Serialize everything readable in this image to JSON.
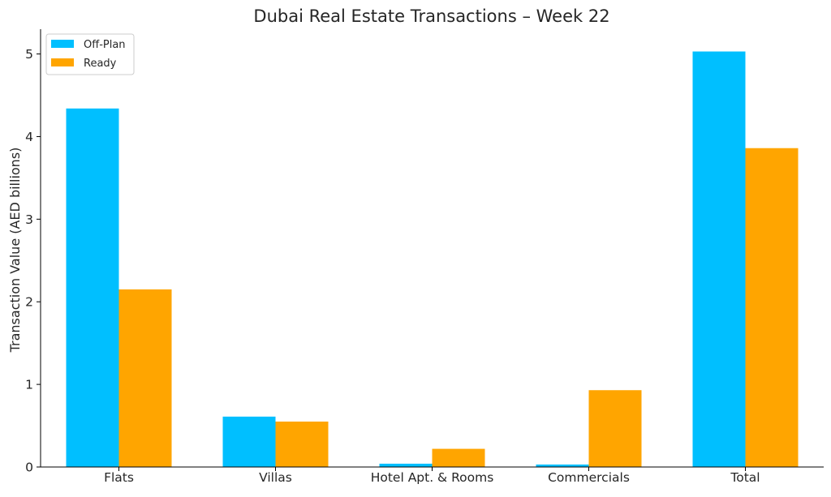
{
  "chart_data": {
    "type": "bar",
    "title": "Dubai Real Estate Transactions – Week 22",
    "xlabel": "",
    "ylabel": "Transaction Value (AED billions)",
    "categories": [
      "Flats",
      "Villas",
      "Hotel Apt. & Rooms",
      "Commercials",
      "Total"
    ],
    "series": [
      {
        "name": "Off-Plan",
        "color": "#00BFFF",
        "values": [
          4.34,
          0.61,
          0.04,
          0.03,
          5.03
        ]
      },
      {
        "name": "Ready",
        "color": "#FFA500",
        "values": [
          2.15,
          0.55,
          0.22,
          0.93,
          3.86
        ]
      }
    ],
    "ylim": [
      0,
      5.3
    ],
    "yticks": [
      "0",
      "1",
      "2",
      "3",
      "4",
      "5"
    ],
    "grid": false,
    "legend_position": "top-left"
  }
}
